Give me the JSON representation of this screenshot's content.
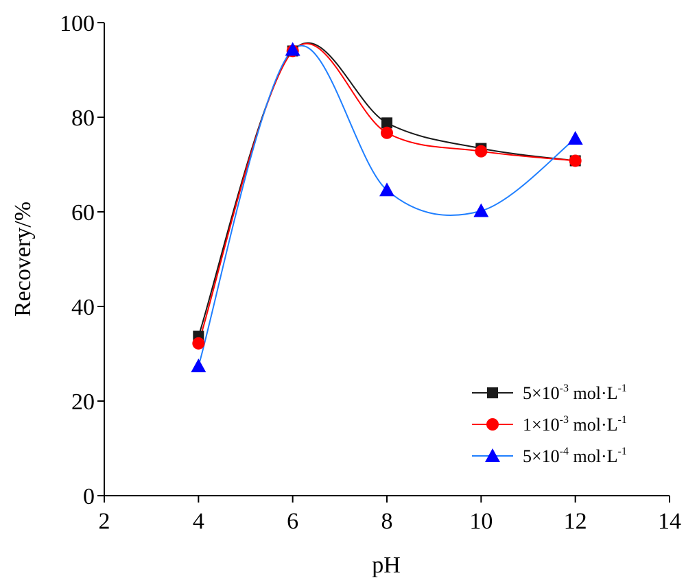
{
  "chart_data": {
    "type": "line",
    "title": "",
    "xlabel": "pH",
    "ylabel": "Recovery/%",
    "xlim": [
      2,
      14
    ],
    "ylim": [
      0,
      100
    ],
    "x_ticks": [
      2,
      4,
      6,
      8,
      10,
      12,
      14
    ],
    "y_ticks": [
      0,
      20,
      40,
      60,
      80,
      100
    ],
    "grid": false,
    "legend_position": "lower-right",
    "x": [
      4,
      6,
      8,
      10,
      12
    ],
    "series": [
      {
        "name": "5×10-3 mol·L-1",
        "label_parts": {
          "coef": "5×10",
          "exp": "-3",
          "unit": " mol·L",
          "unit_exp": "-1"
        },
        "values": [
          33.7,
          94.0,
          78.8,
          73.4,
          70.8
        ],
        "color": "#1a1a1a",
        "marker": "square"
      },
      {
        "name": "1×10-3 mol·L-1",
        "label_parts": {
          "coef": "1×10",
          "exp": "-3",
          "unit": " mol·L",
          "unit_exp": "-1"
        },
        "values": [
          32.2,
          94.0,
          76.7,
          72.8,
          70.8
        ],
        "color": "#ff0000",
        "marker": "circle"
      },
      {
        "name": "5×10-4 mol·L-1",
        "label_parts": {
          "coef": "5×10",
          "exp": "-4",
          "unit": " mol·L",
          "unit_exp": "-1"
        },
        "values": [
          27.4,
          94.3,
          64.6,
          60.2,
          75.5
        ],
        "color": "#0000ff",
        "line_color": "#1f7fff",
        "marker": "triangle"
      }
    ]
  }
}
